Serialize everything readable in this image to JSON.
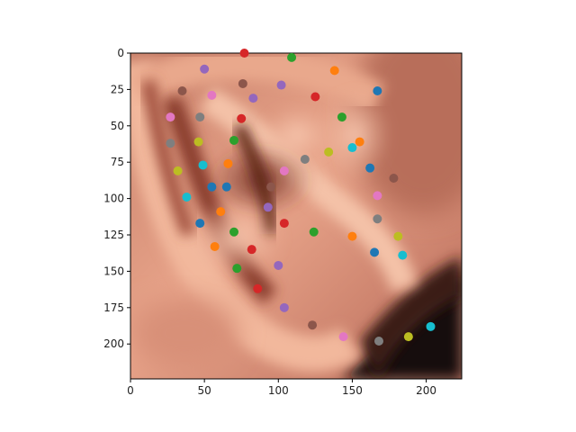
{
  "chart_data": {
    "type": "scatter",
    "title": "",
    "xlabel": "",
    "ylabel": "",
    "xlim": [
      0,
      224
    ],
    "ylim": [
      224,
      0
    ],
    "x_ticks": [
      0,
      50,
      100,
      150,
      200
    ],
    "y_ticks": [
      0,
      25,
      50,
      75,
      100,
      125,
      150,
      175,
      200
    ],
    "background_image": "ear-photo",
    "grid": false,
    "legend": "none",
    "palette": [
      "#1f77b4",
      "#ff7f0e",
      "#2ca02c",
      "#d62728",
      "#9467bd",
      "#8c564b",
      "#e377c2",
      "#7f7f7f",
      "#bcbd22",
      "#17becf"
    ],
    "points": [
      {
        "x": 77,
        "y": 0,
        "color": "#d62728"
      },
      {
        "x": 109,
        "y": 3,
        "color": "#2ca02c"
      },
      {
        "x": 50,
        "y": 11,
        "color": "#9467bd"
      },
      {
        "x": 138,
        "y": 12,
        "color": "#ff7f0e"
      },
      {
        "x": 76,
        "y": 21,
        "color": "#8c564b"
      },
      {
        "x": 102,
        "y": 22,
        "color": "#9467bd"
      },
      {
        "x": 35,
        "y": 26,
        "color": "#8c564b"
      },
      {
        "x": 167,
        "y": 26,
        "color": "#1f77b4"
      },
      {
        "x": 55,
        "y": 29,
        "color": "#e377c2"
      },
      {
        "x": 83,
        "y": 31,
        "color": "#9467bd"
      },
      {
        "x": 125,
        "y": 30,
        "color": "#d62728"
      },
      {
        "x": 27,
        "y": 44,
        "color": "#e377c2"
      },
      {
        "x": 47,
        "y": 44,
        "color": "#7f7f7f"
      },
      {
        "x": 75,
        "y": 45,
        "color": "#d62728"
      },
      {
        "x": 143,
        "y": 44,
        "color": "#2ca02c"
      },
      {
        "x": 27,
        "y": 62,
        "color": "#7f7f7f"
      },
      {
        "x": 46,
        "y": 61,
        "color": "#bcbd22"
      },
      {
        "x": 70,
        "y": 60,
        "color": "#2ca02c"
      },
      {
        "x": 155,
        "y": 61,
        "color": "#ff7f0e"
      },
      {
        "x": 150,
        "y": 65,
        "color": "#17becf"
      },
      {
        "x": 134,
        "y": 68,
        "color": "#bcbd22"
      },
      {
        "x": 118,
        "y": 73,
        "color": "#7f7f7f"
      },
      {
        "x": 32,
        "y": 81,
        "color": "#bcbd22"
      },
      {
        "x": 49,
        "y": 77,
        "color": "#17becf"
      },
      {
        "x": 66,
        "y": 76,
        "color": "#ff7f0e"
      },
      {
        "x": 104,
        "y": 81,
        "color": "#e377c2"
      },
      {
        "x": 162,
        "y": 79,
        "color": "#1f77b4"
      },
      {
        "x": 178,
        "y": 86,
        "color": "#8c564b"
      },
      {
        "x": 55,
        "y": 92,
        "color": "#1f77b4"
      },
      {
        "x": 65,
        "y": 92,
        "color": "#1f77b4"
      },
      {
        "x": 95,
        "y": 92,
        "color": "#8c564b"
      },
      {
        "x": 38,
        "y": 99,
        "color": "#17becf"
      },
      {
        "x": 167,
        "y": 98,
        "color": "#e377c2"
      },
      {
        "x": 61,
        "y": 109,
        "color": "#ff7f0e"
      },
      {
        "x": 93,
        "y": 106,
        "color": "#9467bd"
      },
      {
        "x": 47,
        "y": 117,
        "color": "#1f77b4"
      },
      {
        "x": 104,
        "y": 117,
        "color": "#d62728"
      },
      {
        "x": 167,
        "y": 114,
        "color": "#7f7f7f"
      },
      {
        "x": 70,
        "y": 123,
        "color": "#2ca02c"
      },
      {
        "x": 124,
        "y": 123,
        "color": "#2ca02c"
      },
      {
        "x": 150,
        "y": 126,
        "color": "#ff7f0e"
      },
      {
        "x": 181,
        "y": 126,
        "color": "#bcbd22"
      },
      {
        "x": 57,
        "y": 133,
        "color": "#ff7f0e"
      },
      {
        "x": 82,
        "y": 135,
        "color": "#d62728"
      },
      {
        "x": 165,
        "y": 137,
        "color": "#1f77b4"
      },
      {
        "x": 184,
        "y": 139,
        "color": "#17becf"
      },
      {
        "x": 100,
        "y": 146,
        "color": "#9467bd"
      },
      {
        "x": 72,
        "y": 148,
        "color": "#2ca02c"
      },
      {
        "x": 86,
        "y": 162,
        "color": "#d62728"
      },
      {
        "x": 104,
        "y": 175,
        "color": "#9467bd"
      },
      {
        "x": 123,
        "y": 187,
        "color": "#8c564b"
      },
      {
        "x": 203,
        "y": 188,
        "color": "#17becf"
      },
      {
        "x": 144,
        "y": 195,
        "color": "#e377c2"
      },
      {
        "x": 168,
        "y": 198,
        "color": "#7f7f7f"
      },
      {
        "x": 188,
        "y": 195,
        "color": "#bcbd22"
      }
    ]
  }
}
